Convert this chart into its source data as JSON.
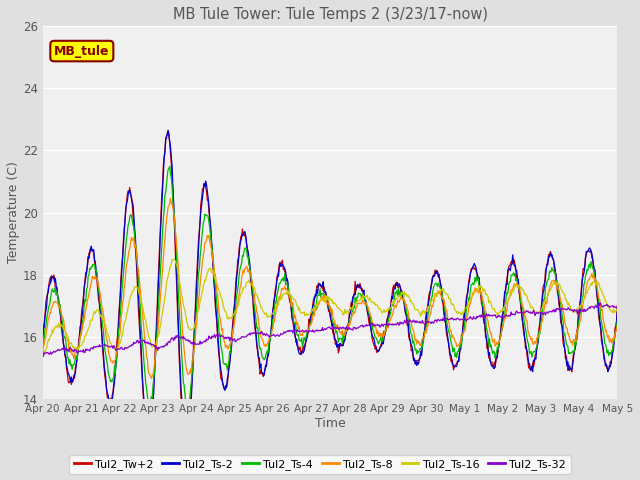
{
  "title": "MB Tule Tower: Tule Temps 2 (3/23/17-now)",
  "xlabel": "Time",
  "ylabel": "Temperature (C)",
  "ylim": [
    14,
    26
  ],
  "yticks": [
    14,
    16,
    18,
    20,
    22,
    24,
    26
  ],
  "outer_bg": "#e0e0e0",
  "plot_bg": "#f0f0f0",
  "grid_color": "#ffffff",
  "legend_box_label": "MB_tule",
  "legend_box_facecolor": "#ffff00",
  "legend_box_edgecolor": "#880000",
  "legend_box_textcolor": "#880000",
  "series": [
    {
      "label": "Tul2_Tw+2",
      "color": "#cc0000"
    },
    {
      "label": "Tul2_Ts-2",
      "color": "#0000cc"
    },
    {
      "label": "Tul2_Ts-4",
      "color": "#00bb00"
    },
    {
      "label": "Tul2_Ts-8",
      "color": "#ff8800"
    },
    {
      "label": "Tul2_Ts-16",
      "color": "#cccc00"
    },
    {
      "label": "Tul2_Ts-32",
      "color": "#8800cc"
    }
  ],
  "xtick_labels": [
    "Apr 20",
    "Apr 21",
    "Apr 22",
    "Apr 23",
    "Apr 24",
    "Apr 25",
    "Apr 26",
    "Apr 27",
    "Apr 28",
    "Apr 29",
    "Apr 30",
    "May 1",
    "May 2",
    "May 3",
    "May 4",
    "May 5"
  ],
  "n_days": 15,
  "pts_per_day": 48
}
